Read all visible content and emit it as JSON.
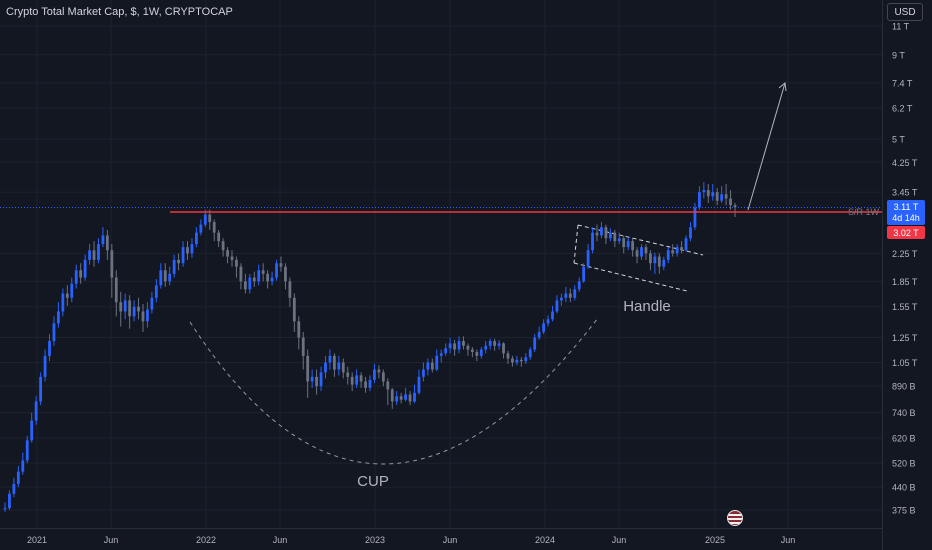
{
  "header": {
    "title": "Crypto Total Market Cap, $, 1W, CRYPTOCAP"
  },
  "currency_button": {
    "label": "USD"
  },
  "colors": {
    "background": "#131722",
    "candle_up": "#2962ff",
    "candle_down": "#6b7280",
    "resistance_line": "#f23645",
    "price_line": "#2962ff",
    "annotation": "#9598a1"
  },
  "chart_data": {
    "type": "candlestick",
    "y_scale": "log",
    "y_tick_labels": [
      "11 T",
      "9 T",
      "7.4 T",
      "6.2 T",
      "5 T",
      "4.25 T",
      "3.45 T",
      "2.25 T",
      "1.85 T",
      "1.55 T",
      "1.25 T",
      "1.05 T",
      "890 B",
      "740 B",
      "620 B",
      "520 B",
      "440 B",
      "375 B"
    ],
    "x_tick_labels": [
      "2021",
      "Jun",
      "2022",
      "Jun",
      "2023",
      "Jun",
      "2024",
      "Jun",
      "2025",
      "Jun"
    ],
    "annotations": {
      "cup_label": "CUP",
      "handle_label": "Handle",
      "sr_label": "S/R 1W"
    },
    "price_badge": {
      "value": "3.11 T",
      "countdown": "4d 14h"
    },
    "resistance_badge": {
      "value": "3.02 T"
    },
    "series": [
      {
        "values": [
          [
            380,
            380,
            395,
            370
          ],
          [
            380,
            420,
            430,
            375
          ],
          [
            420,
            450,
            470,
            410
          ],
          [
            450,
            490,
            510,
            440
          ],
          [
            490,
            530,
            560,
            480
          ],
          [
            530,
            610,
            630,
            520
          ],
          [
            610,
            700,
            740,
            600
          ],
          [
            700,
            800,
            830,
            680
          ],
          [
            800,
            950,
            980,
            780
          ],
          [
            950,
            1100,
            1150,
            920
          ],
          [
            1100,
            1220,
            1280,
            1060
          ],
          [
            1220,
            1380,
            1450,
            1180
          ],
          [
            1380,
            1500,
            1600,
            1340
          ],
          [
            1500,
            1700,
            1760,
            1450
          ],
          [
            1700,
            1650,
            1800,
            1560
          ],
          [
            1650,
            1820,
            1900,
            1600
          ],
          [
            1820,
            2000,
            2080,
            1760
          ],
          [
            2000,
            1900,
            2100,
            1820
          ],
          [
            1900,
            2150,
            2230,
            1860
          ],
          [
            2150,
            2300,
            2400,
            2080
          ],
          [
            2300,
            2150,
            2450,
            2050
          ],
          [
            2150,
            2400,
            2500,
            2100
          ],
          [
            2400,
            2550,
            2700,
            2350
          ],
          [
            2550,
            2300,
            2650,
            2150
          ],
          [
            2300,
            1900,
            2400,
            1650
          ],
          [
            1900,
            1600,
            2000,
            1450
          ],
          [
            1600,
            1500,
            1720,
            1350
          ],
          [
            1500,
            1620,
            1700,
            1420
          ],
          [
            1620,
            1450,
            1680,
            1330
          ],
          [
            1450,
            1550,
            1620,
            1400
          ],
          [
            1550,
            1500,
            1650,
            1420
          ],
          [
            1500,
            1400,
            1580,
            1300
          ],
          [
            1400,
            1520,
            1600,
            1340
          ],
          [
            1520,
            1650,
            1720,
            1480
          ],
          [
            1650,
            1800,
            1880,
            1600
          ],
          [
            1800,
            2000,
            2100,
            1760
          ],
          [
            2000,
            1850,
            2100,
            1780
          ],
          [
            1850,
            1950,
            2050,
            1800
          ],
          [
            1950,
            2150,
            2230,
            1900
          ],
          [
            2150,
            2100,
            2250,
            2000
          ],
          [
            2100,
            2350,
            2450,
            2050
          ],
          [
            2350,
            2250,
            2450,
            2150
          ],
          [
            2250,
            2400,
            2500,
            2180
          ],
          [
            2400,
            2600,
            2700,
            2350
          ],
          [
            2600,
            2750,
            2850,
            2550
          ],
          [
            2750,
            2950,
            3050,
            2700
          ],
          [
            2950,
            2800,
            3050,
            2650
          ],
          [
            2800,
            2600,
            2850,
            2450
          ],
          [
            2600,
            2450,
            2650,
            2350
          ],
          [
            2450,
            2300,
            2500,
            2200
          ],
          [
            2300,
            2200,
            2350,
            2100
          ],
          [
            2200,
            2150,
            2300,
            2050
          ],
          [
            2150,
            2050,
            2200,
            1900
          ],
          [
            2050,
            1850,
            2100,
            1750
          ],
          [
            1850,
            1750,
            1950,
            1700
          ],
          [
            1750,
            1900,
            1950,
            1700
          ],
          [
            1900,
            1850,
            1980,
            1780
          ],
          [
            1850,
            2000,
            2080,
            1800
          ],
          [
            2000,
            1950,
            2100,
            1850
          ],
          [
            1950,
            1850,
            2000,
            1760
          ],
          [
            1850,
            1900,
            1980,
            1800
          ],
          [
            1900,
            2100,
            2150,
            1860
          ],
          [
            2100,
            2050,
            2200,
            1980
          ],
          [
            2050,
            1850,
            2100,
            1750
          ],
          [
            1850,
            1650,
            1900,
            1550
          ],
          [
            1650,
            1400,
            1700,
            1300
          ],
          [
            1400,
            1250,
            1450,
            1150
          ],
          [
            1250,
            1100,
            1300,
            1000
          ],
          [
            1100,
            920,
            1150,
            820
          ],
          [
            920,
            950,
            1000,
            880
          ],
          [
            950,
            890,
            1000,
            840
          ],
          [
            890,
            980,
            1020,
            860
          ],
          [
            980,
            1050,
            1100,
            940
          ],
          [
            1050,
            1100,
            1150,
            1000
          ],
          [
            1100,
            1000,
            1120,
            950
          ],
          [
            1000,
            1050,
            1100,
            960
          ],
          [
            1050,
            980,
            1080,
            940
          ],
          [
            980,
            950,
            1020,
            900
          ],
          [
            950,
            900,
            980,
            860
          ],
          [
            900,
            960,
            1000,
            880
          ],
          [
            960,
            920,
            980,
            880
          ],
          [
            920,
            880,
            950,
            850
          ],
          [
            880,
            930,
            960,
            860
          ],
          [
            930,
            1000,
            1040,
            910
          ],
          [
            1000,
            980,
            1030,
            940
          ],
          [
            980,
            920,
            1000,
            890
          ],
          [
            920,
            870,
            940,
            780
          ],
          [
            870,
            800,
            880,
            760
          ],
          [
            800,
            830,
            860,
            780
          ],
          [
            830,
            810,
            850,
            790
          ],
          [
            810,
            840,
            880,
            800
          ],
          [
            840,
            800,
            860,
            780
          ],
          [
            800,
            850,
            900,
            790
          ],
          [
            850,
            950,
            1000,
            840
          ],
          [
            950,
            1000,
            1050,
            920
          ],
          [
            1000,
            1050,
            1080,
            960
          ],
          [
            1050,
            1000,
            1080,
            980
          ],
          [
            1000,
            1100,
            1150,
            990
          ],
          [
            1100,
            1120,
            1150,
            1050
          ],
          [
            1120,
            1160,
            1200,
            1100
          ],
          [
            1160,
            1200,
            1250,
            1120
          ],
          [
            1200,
            1150,
            1230,
            1100
          ],
          [
            1150,
            1220,
            1260,
            1120
          ],
          [
            1220,
            1180,
            1260,
            1150
          ],
          [
            1180,
            1150,
            1200,
            1100
          ],
          [
            1150,
            1130,
            1170,
            1090
          ],
          [
            1130,
            1100,
            1150,
            1060
          ],
          [
            1100,
            1150,
            1170,
            1080
          ],
          [
            1150,
            1180,
            1220,
            1120
          ],
          [
            1180,
            1220,
            1240,
            1150
          ],
          [
            1220,
            1180,
            1240,
            1140
          ],
          [
            1180,
            1200,
            1230,
            1150
          ],
          [
            1200,
            1120,
            1210,
            1080
          ],
          [
            1120,
            1080,
            1140,
            1040
          ],
          [
            1080,
            1050,
            1100,
            1020
          ],
          [
            1050,
            1070,
            1100,
            1030
          ],
          [
            1070,
            1060,
            1090,
            1020
          ],
          [
            1060,
            1090,
            1120,
            1040
          ],
          [
            1090,
            1150,
            1170,
            1070
          ],
          [
            1150,
            1250,
            1280,
            1130
          ],
          [
            1250,
            1300,
            1350,
            1230
          ],
          [
            1300,
            1380,
            1420,
            1280
          ],
          [
            1380,
            1420,
            1460,
            1350
          ],
          [
            1420,
            1500,
            1560,
            1400
          ],
          [
            1500,
            1620,
            1680,
            1480
          ],
          [
            1620,
            1650,
            1700,
            1560
          ],
          [
            1650,
            1700,
            1780,
            1600
          ],
          [
            1700,
            1650,
            1760,
            1600
          ],
          [
            1650,
            1750,
            1800,
            1620
          ],
          [
            1750,
            1850,
            1900,
            1720
          ],
          [
            1850,
            2050,
            2100,
            1830
          ],
          [
            2050,
            2300,
            2400,
            2020
          ],
          [
            2300,
            2600,
            2700,
            2250
          ],
          [
            2600,
            2550,
            2750,
            2450
          ],
          [
            2550,
            2700,
            2800,
            2500
          ],
          [
            2700,
            2500,
            2750,
            2400
          ],
          [
            2500,
            2600,
            2680,
            2450
          ],
          [
            2600,
            2450,
            2650,
            2350
          ],
          [
            2450,
            2500,
            2600,
            2400
          ],
          [
            2500,
            2350,
            2550,
            2250
          ],
          [
            2350,
            2450,
            2520,
            2300
          ],
          [
            2450,
            2300,
            2500,
            2200
          ],
          [
            2300,
            2200,
            2350,
            2100
          ],
          [
            2200,
            2350,
            2400,
            2150
          ],
          [
            2350,
            2250,
            2400,
            2150
          ],
          [
            2250,
            2100,
            2300,
            2000
          ],
          [
            2100,
            2200,
            2260,
            1950
          ],
          [
            2200,
            2050,
            2250,
            1950
          ],
          [
            2050,
            2150,
            2200,
            2000
          ],
          [
            2150,
            2300,
            2350,
            2100
          ],
          [
            2300,
            2250,
            2400,
            2200
          ],
          [
            2250,
            2350,
            2400,
            2200
          ],
          [
            2350,
            2300,
            2450,
            2250
          ],
          [
            2300,
            2500,
            2550,
            2280
          ],
          [
            2500,
            2700,
            2800,
            2450
          ],
          [
            2700,
            3100,
            3200,
            2650
          ],
          [
            3100,
            3450,
            3600,
            3050
          ],
          [
            3450,
            3500,
            3700,
            3300
          ],
          [
            3500,
            3350,
            3650,
            3200
          ],
          [
            3350,
            3450,
            3650,
            3250
          ],
          [
            3450,
            3250,
            3550,
            3150
          ],
          [
            3250,
            3400,
            3600,
            3200
          ],
          [
            3400,
            3300,
            3650,
            3150
          ],
          [
            3300,
            3150,
            3500,
            3050
          ],
          [
            3150,
            3110,
            3200,
            2900
          ]
        ]
      }
    ]
  }
}
